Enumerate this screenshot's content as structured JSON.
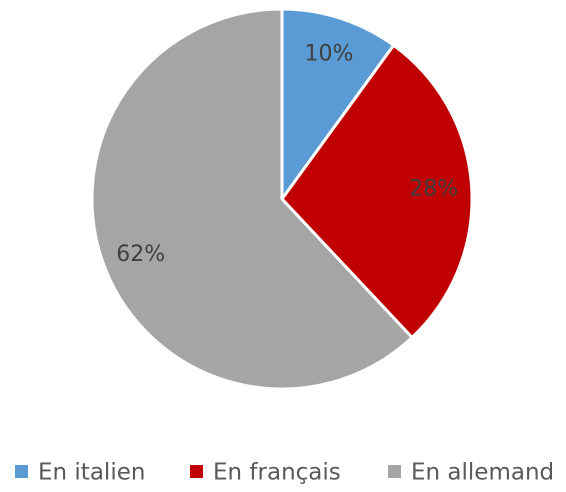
{
  "chart_data": {
    "type": "pie",
    "categories": [
      "En italien",
      "En français",
      "En allemand"
    ],
    "values": [
      10,
      28,
      62
    ],
    "value_labels": [
      "10%",
      "28%",
      "62%"
    ],
    "colors": [
      "#5b9bd5",
      "#c00000",
      "#a5a5a5"
    ],
    "legend": "bottom"
  }
}
